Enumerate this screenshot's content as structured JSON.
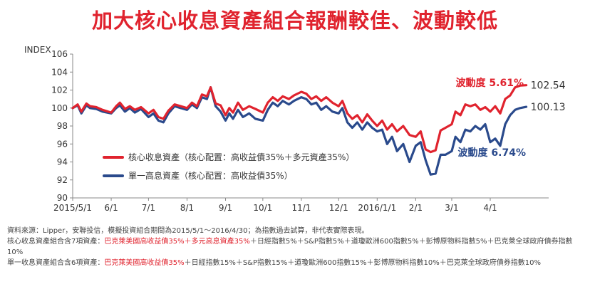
{
  "title": "加大核心收息資產組合報酬較佳、波動較低",
  "colors": {
    "core": "#e0232e",
    "single": "#2a4a8c",
    "title": "#e0232e"
  },
  "chart_data": {
    "type": "line",
    "ylabel": "INDEX",
    "ylim": [
      90,
      106
    ],
    "yticks": [
      90,
      92,
      94,
      96,
      98,
      100,
      102,
      104,
      106
    ],
    "xlim": [
      "2015-05-01",
      "2016-05-18"
    ],
    "x_ticks": [
      {
        "date": "2015-05-01",
        "label": "2015/5/1"
      },
      {
        "date": "2015-06-01",
        "label": "6/1"
      },
      {
        "date": "2015-07-01",
        "label": "7/1"
      },
      {
        "date": "2015-08-01",
        "label": "8/1"
      },
      {
        "date": "2015-09-01",
        "label": "9/1"
      },
      {
        "date": "2015-10-01",
        "label": "10/1"
      },
      {
        "date": "2015-11-01",
        "label": "11/1"
      },
      {
        "date": "2015-12-01",
        "label": "12/1"
      },
      {
        "date": "2016-01-01",
        "label": "2016/1/1"
      },
      {
        "date": "2016-02-01",
        "label": "2/1"
      },
      {
        "date": "2016-03-01",
        "label": "3/1"
      },
      {
        "date": "2016-04-01",
        "label": "4/1"
      }
    ],
    "grid": false,
    "legend_position": "bottom-left",
    "series": [
      {
        "name": "核心收息資產（核心配置：高收益債35%＋多元資產35%）",
        "key": "core",
        "end_label": "102.54",
        "volatility_label": "波動度 5.61%",
        "points": [
          [
            "2015-05-01",
            100.0
          ],
          [
            "2015-05-05",
            100.4
          ],
          [
            "2015-05-08",
            99.6
          ],
          [
            "2015-05-12",
            100.5
          ],
          [
            "2015-05-15",
            100.2
          ],
          [
            "2015-05-20",
            100.1
          ],
          [
            "2015-05-25",
            99.8
          ],
          [
            "2015-06-01",
            99.5
          ],
          [
            "2015-06-05",
            100.2
          ],
          [
            "2015-06-08",
            100.6
          ],
          [
            "2015-06-12",
            99.9
          ],
          [
            "2015-06-16",
            100.2
          ],
          [
            "2015-06-20",
            99.8
          ],
          [
            "2015-06-25",
            100.1
          ],
          [
            "2015-07-01",
            99.4
          ],
          [
            "2015-07-05",
            99.8
          ],
          [
            "2015-07-09",
            99.0
          ],
          [
            "2015-07-13",
            98.8
          ],
          [
            "2015-07-17",
            99.7
          ],
          [
            "2015-07-22",
            100.4
          ],
          [
            "2015-07-27",
            100.2
          ],
          [
            "2015-08-01",
            100.0
          ],
          [
            "2015-08-05",
            100.6
          ],
          [
            "2015-08-09",
            100.2
          ],
          [
            "2015-08-13",
            101.5
          ],
          [
            "2015-08-17",
            101.3
          ],
          [
            "2015-08-20",
            102.3
          ],
          [
            "2015-08-24",
            100.5
          ],
          [
            "2015-08-28",
            100.3
          ],
          [
            "2015-09-01",
            99.2
          ],
          [
            "2015-09-04",
            100.0
          ],
          [
            "2015-09-07",
            99.5
          ],
          [
            "2015-09-11",
            100.6
          ],
          [
            "2015-09-15",
            99.8
          ],
          [
            "2015-09-20",
            100.2
          ],
          [
            "2015-09-25",
            99.9
          ],
          [
            "2015-10-01",
            99.5
          ],
          [
            "2015-10-05",
            100.6
          ],
          [
            "2015-10-09",
            101.2
          ],
          [
            "2015-10-13",
            100.8
          ],
          [
            "2015-10-17",
            101.3
          ],
          [
            "2015-10-22",
            101.0
          ],
          [
            "2015-10-26",
            101.4
          ],
          [
            "2015-11-01",
            101.8
          ],
          [
            "2015-11-05",
            101.6
          ],
          [
            "2015-11-09",
            101.0
          ],
          [
            "2015-11-13",
            101.3
          ],
          [
            "2015-11-17",
            100.8
          ],
          [
            "2015-11-21",
            101.2
          ],
          [
            "2015-11-26",
            100.6
          ],
          [
            "2015-12-01",
            100.2
          ],
          [
            "2015-12-04",
            100.8
          ],
          [
            "2015-12-08",
            99.4
          ],
          [
            "2015-12-12",
            98.8
          ],
          [
            "2015-12-16",
            99.2
          ],
          [
            "2015-12-20",
            98.4
          ],
          [
            "2015-12-24",
            99.3
          ],
          [
            "2015-12-28",
            98.6
          ],
          [
            "2016-01-01",
            98.0
          ],
          [
            "2016-01-05",
            98.6
          ],
          [
            "2016-01-09",
            97.6
          ],
          [
            "2016-01-13",
            98.2
          ],
          [
            "2016-01-17",
            97.4
          ],
          [
            "2016-01-22",
            98.0
          ],
          [
            "2016-01-27",
            97.0
          ],
          [
            "2016-02-01",
            96.8
          ],
          [
            "2016-02-05",
            97.4
          ],
          [
            "2016-02-09",
            95.4
          ],
          [
            "2016-02-13",
            95.1
          ],
          [
            "2016-02-17",
            95.3
          ],
          [
            "2016-02-21",
            97.5
          ],
          [
            "2016-02-25",
            97.8
          ],
          [
            "2016-03-01",
            98.2
          ],
          [
            "2016-03-04",
            99.6
          ],
          [
            "2016-03-08",
            99.2
          ],
          [
            "2016-03-12",
            100.4
          ],
          [
            "2016-03-16",
            100.2
          ],
          [
            "2016-03-20",
            100.4
          ],
          [
            "2016-03-24",
            99.8
          ],
          [
            "2016-03-28",
            100.1
          ],
          [
            "2016-04-01",
            99.6
          ],
          [
            "2016-04-05",
            100.2
          ],
          [
            "2016-04-09",
            99.4
          ],
          [
            "2016-04-13",
            101.0
          ],
          [
            "2016-04-17",
            101.4
          ],
          [
            "2016-04-21",
            102.3
          ],
          [
            "2016-04-25",
            102.5
          ],
          [
            "2016-04-30",
            102.54
          ]
        ]
      },
      {
        "name": "單一高息資產（核心配置：高收益債35%）",
        "key": "single",
        "end_label": "100.13",
        "volatility_label": "波動度 6.74%",
        "points": [
          [
            "2015-05-01",
            100.0
          ],
          [
            "2015-05-05",
            100.3
          ],
          [
            "2015-05-08",
            99.4
          ],
          [
            "2015-05-12",
            100.3
          ],
          [
            "2015-05-15",
            100.0
          ],
          [
            "2015-05-20",
            99.9
          ],
          [
            "2015-05-25",
            99.6
          ],
          [
            "2015-06-01",
            99.4
          ],
          [
            "2015-06-05",
            100.0
          ],
          [
            "2015-06-08",
            100.3
          ],
          [
            "2015-06-12",
            99.6
          ],
          [
            "2015-06-16",
            100.0
          ],
          [
            "2015-06-20",
            99.5
          ],
          [
            "2015-06-25",
            99.9
          ],
          [
            "2015-07-01",
            99.0
          ],
          [
            "2015-07-05",
            99.4
          ],
          [
            "2015-07-09",
            98.6
          ],
          [
            "2015-07-13",
            98.4
          ],
          [
            "2015-07-17",
            99.4
          ],
          [
            "2015-07-22",
            100.2
          ],
          [
            "2015-07-27",
            100.0
          ],
          [
            "2015-08-01",
            99.8
          ],
          [
            "2015-08-05",
            100.4
          ],
          [
            "2015-08-09",
            100.0
          ],
          [
            "2015-08-13",
            101.2
          ],
          [
            "2015-08-17",
            101.0
          ],
          [
            "2015-08-20",
            102.3
          ],
          [
            "2015-08-24",
            100.2
          ],
          [
            "2015-08-28",
            99.6
          ],
          [
            "2015-09-01",
            98.6
          ],
          [
            "2015-09-04",
            99.4
          ],
          [
            "2015-09-07",
            98.8
          ],
          [
            "2015-09-11",
            99.8
          ],
          [
            "2015-09-15",
            99.0
          ],
          [
            "2015-09-20",
            99.4
          ],
          [
            "2015-09-25",
            98.8
          ],
          [
            "2015-10-01",
            98.6
          ],
          [
            "2015-10-05",
            99.8
          ],
          [
            "2015-10-09",
            100.6
          ],
          [
            "2015-10-13",
            100.2
          ],
          [
            "2015-10-17",
            100.8
          ],
          [
            "2015-10-22",
            100.4
          ],
          [
            "2015-10-26",
            100.8
          ],
          [
            "2015-11-01",
            101.2
          ],
          [
            "2015-11-05",
            101.0
          ],
          [
            "2015-11-09",
            100.4
          ],
          [
            "2015-11-13",
            100.6
          ],
          [
            "2015-11-17",
            99.8
          ],
          [
            "2015-11-21",
            100.2
          ],
          [
            "2015-11-26",
            99.6
          ],
          [
            "2015-12-01",
            99.4
          ],
          [
            "2015-12-04",
            100.0
          ],
          [
            "2015-12-08",
            98.4
          ],
          [
            "2015-12-12",
            97.8
          ],
          [
            "2015-12-16",
            98.4
          ],
          [
            "2015-12-20",
            97.6
          ],
          [
            "2015-12-24",
            98.4
          ],
          [
            "2015-12-28",
            97.8
          ],
          [
            "2016-01-01",
            97.4
          ],
          [
            "2016-01-05",
            97.6
          ],
          [
            "2016-01-09",
            96.0
          ],
          [
            "2016-01-13",
            96.8
          ],
          [
            "2016-01-17",
            95.2
          ],
          [
            "2016-01-22",
            96.0
          ],
          [
            "2016-01-27",
            94.0
          ],
          [
            "2016-02-01",
            95.8
          ],
          [
            "2016-02-05",
            96.2
          ],
          [
            "2016-02-09",
            94.2
          ],
          [
            "2016-02-13",
            92.6
          ],
          [
            "2016-02-17",
            92.7
          ],
          [
            "2016-02-21",
            94.8
          ],
          [
            "2016-02-25",
            94.8
          ],
          [
            "2016-03-01",
            95.2
          ],
          [
            "2016-03-04",
            96.8
          ],
          [
            "2016-03-08",
            96.2
          ],
          [
            "2016-03-12",
            97.6
          ],
          [
            "2016-03-16",
            97.4
          ],
          [
            "2016-03-20",
            98.0
          ],
          [
            "2016-03-24",
            97.6
          ],
          [
            "2016-03-28",
            98.2
          ],
          [
            "2016-04-01",
            96.2
          ],
          [
            "2016-04-05",
            96.6
          ],
          [
            "2016-04-09",
            95.8
          ],
          [
            "2016-04-13",
            98.2
          ],
          [
            "2016-04-17",
            99.2
          ],
          [
            "2016-04-21",
            99.8
          ],
          [
            "2016-04-25",
            100.0
          ],
          [
            "2016-04-30",
            100.13
          ]
        ]
      }
    ]
  },
  "notes": {
    "line1": "資料來源：Lipper，安聯投信，模擬投資組合期間為2015/5/1～2016/4/30；為指數過去試算，非代表實際表現。",
    "line2_prefix": "核心收息資產組合含7項資產：",
    "line2_highlight": "巴克萊美國高收益債35%＋多元高息資產35%",
    "line2_suffix": "＋日經指數5%＋S&P指數5%＋道瓊歐洲600指數5%＋彭博原物料指數5%＋巴克萊全球政府債券指數10%",
    "line3_prefix": "單一收息資產組合含6項資產：",
    "line3_highlight": "巴克萊美國高收益債35%",
    "line3_suffix": "＋日經指數15%＋S&P指數15%＋道瓊歐洲600指數15%＋彭博原物料指數10%＋巴克萊全球政府債券指數10%"
  }
}
